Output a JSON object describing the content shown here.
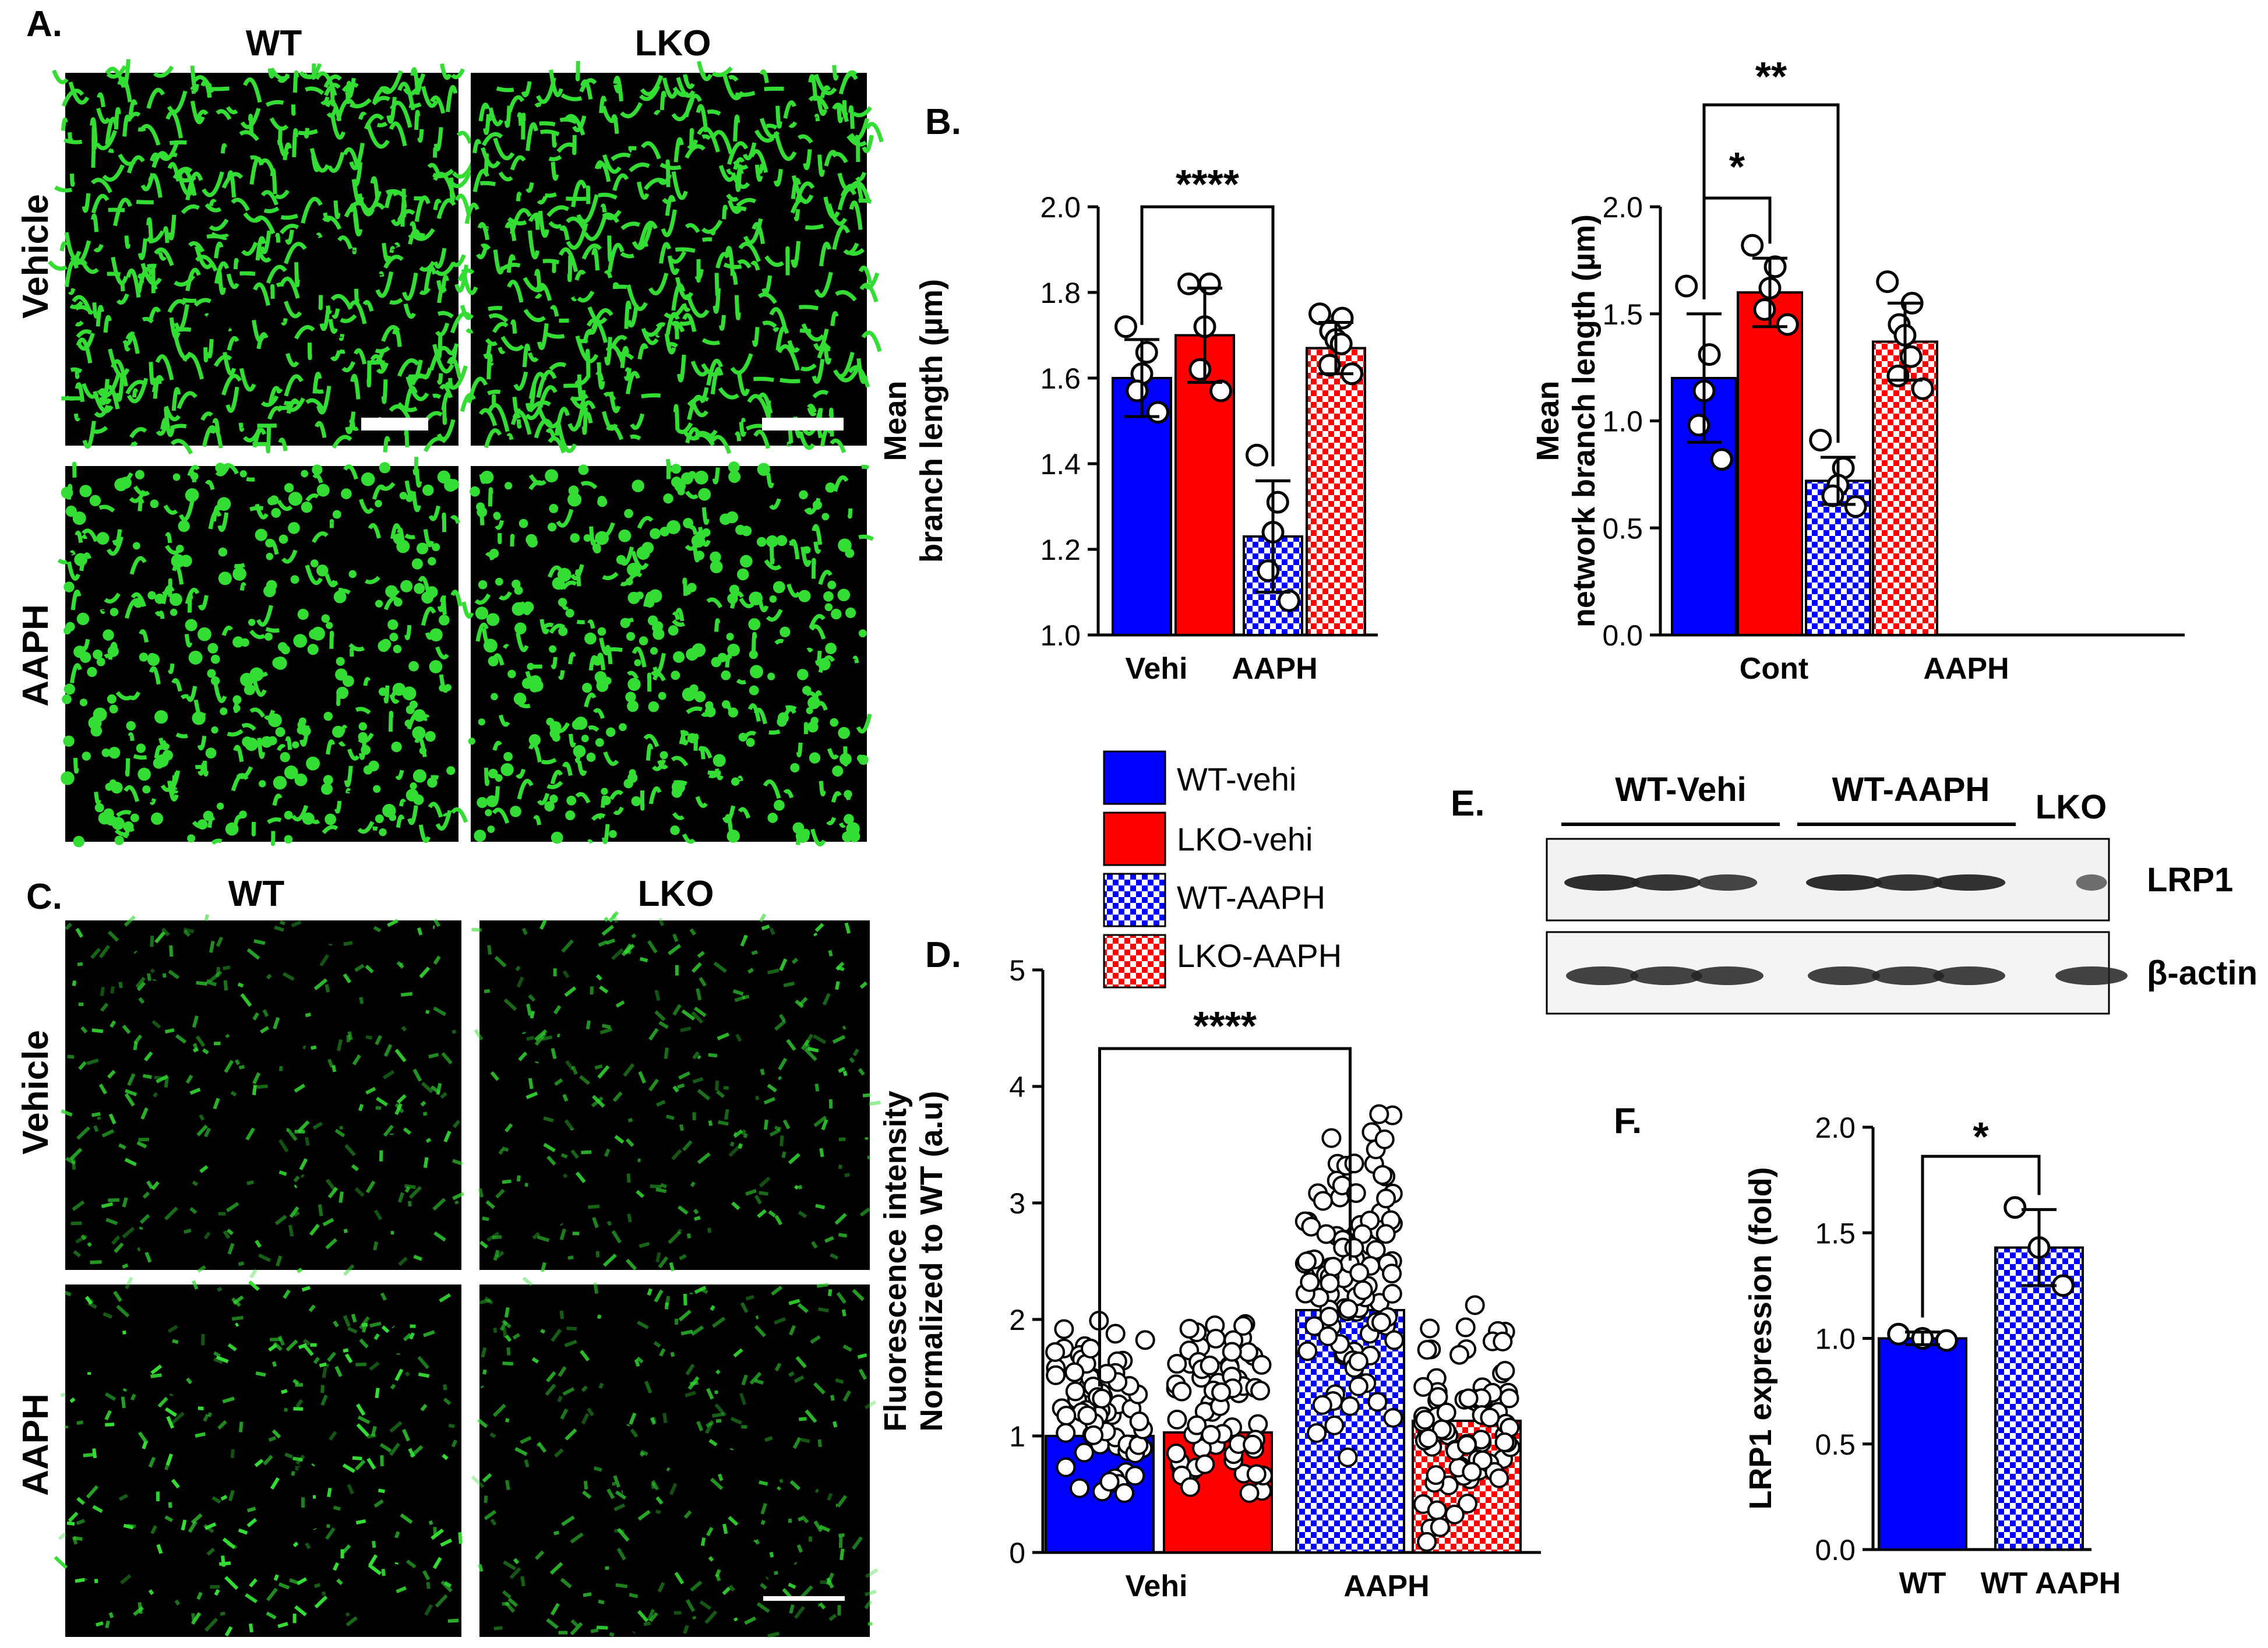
{
  "colors": {
    "wt": "#0000ff",
    "lko": "#ff0000",
    "micro_green": "#33dd33",
    "background": "#ffffff"
  },
  "panel_a": {
    "label": "A.",
    "col_labels": [
      "WT",
      "LKO"
    ],
    "row_labels": [
      "Vehicle",
      "AAPH"
    ]
  },
  "panel_c": {
    "label": "C.",
    "col_labels": [
      "WT",
      "LKO"
    ],
    "row_labels": [
      "Vehicle",
      "AAPH"
    ]
  },
  "legend": {
    "entries": [
      {
        "label": "WT-vehi",
        "color": "#0000ff",
        "pattern": "solid"
      },
      {
        "label": "LKO-vehi",
        "color": "#ff0000",
        "pattern": "solid"
      },
      {
        "label": "WT-AAPH",
        "color": "#0000ff",
        "pattern": "checker"
      },
      {
        "label": "LKO-AAPH",
        "color": "#ff0000",
        "pattern": "checker"
      }
    ]
  },
  "panel_e": {
    "label": "E.",
    "group_labels": [
      "WT-Vehi",
      "WT-AAPH",
      "LKO"
    ],
    "band_labels": [
      "LRP1",
      "β-actin"
    ]
  },
  "chart_data": [
    {
      "id": "B-left",
      "panel_label": "B.",
      "type": "bar",
      "ylabel": [
        "Mean",
        "branch length (µm)"
      ],
      "ylim": [
        1.0,
        2.0
      ],
      "yticks": [
        1.0,
        1.2,
        1.4,
        1.6,
        1.8,
        2.0
      ],
      "ytick_labels": [
        "1.0",
        "1.2",
        "1.4",
        "1.6",
        "1.8",
        "2.0"
      ],
      "categories": [
        "Vehi",
        "AAPH"
      ],
      "bars": [
        {
          "name": "WT-vehi",
          "mean": 1.6,
          "err": 0.09,
          "points": [
            1.72,
            1.66,
            1.61,
            1.57,
            1.52
          ]
        },
        {
          "name": "LKO-vehi",
          "mean": 1.7,
          "err": 0.11,
          "points": [
            1.82,
            1.82,
            1.72,
            1.62,
            1.57
          ]
        },
        {
          "name": "WT-AAPH",
          "mean": 1.23,
          "err": 0.13,
          "points": [
            1.42,
            1.31,
            1.24,
            1.15,
            1.08
          ]
        },
        {
          "name": "LKO-AAPH",
          "mean": 1.67,
          "err": 0.06,
          "points": [
            1.75,
            1.74,
            1.71,
            1.69,
            1.68,
            1.63,
            1.61
          ]
        }
      ],
      "significance": [
        {
          "from": 0,
          "to": 2,
          "label": "****"
        }
      ]
    },
    {
      "id": "B-right",
      "type": "bar",
      "ylabel": [
        "Mean",
        "network branch length (µm)"
      ],
      "ylim": [
        0.0,
        2.0
      ],
      "yticks": [
        0.0,
        0.5,
        1.0,
        1.5,
        2.0
      ],
      "ytick_labels": [
        "0.0",
        "0.5",
        "1.0",
        "1.5",
        "2.0"
      ],
      "categories": [
        "Cont",
        "AAPH"
      ],
      "bars": [
        {
          "name": "WT-vehi",
          "mean": 1.2,
          "err": 0.3,
          "points": [
            1.63,
            1.31,
            1.14,
            0.98,
            0.82
          ]
        },
        {
          "name": "LKO-vehi",
          "mean": 1.6,
          "err": 0.16,
          "points": [
            1.82,
            1.72,
            1.62,
            1.52,
            1.45
          ]
        },
        {
          "name": "WT-AAPH",
          "mean": 0.72,
          "err": 0.11,
          "points": [
            0.91,
            0.78,
            0.7,
            0.65,
            0.6
          ]
        },
        {
          "name": "LKO-AAPH",
          "mean": 1.37,
          "err": 0.18,
          "points": [
            1.65,
            1.55,
            1.45,
            1.4,
            1.3,
            1.21,
            1.15
          ]
        }
      ],
      "significance": [
        {
          "from": 0,
          "to": 1,
          "label": "*"
        },
        {
          "from": 0,
          "to": 2,
          "label": "**"
        }
      ]
    },
    {
      "id": "D",
      "panel_label": "D.",
      "type": "bar",
      "ylabel": [
        "Fluorescence intensity",
        "Normalized to WT (a.u)"
      ],
      "ylim": [
        0,
        5
      ],
      "yticks": [
        0,
        1,
        2,
        3,
        4,
        5
      ],
      "ytick_labels": [
        "0",
        "1",
        "2",
        "3",
        "4",
        "5"
      ],
      "categories": [
        "Vehi",
        "AAPH"
      ],
      "bars": [
        {
          "name": "WT-vehi",
          "mean": 1.0,
          "n": 70,
          "min": 0.3,
          "max": 2.2
        },
        {
          "name": "LKO-vehi",
          "mean": 1.03,
          "n": 70,
          "min": 0.45,
          "max": 2.15
        },
        {
          "name": "WT-AAPH",
          "mean": 2.08,
          "n": 110,
          "min": 0.8,
          "max": 3.95
        },
        {
          "name": "LKO-AAPH",
          "mean": 1.13,
          "n": 80,
          "min": 0.08,
          "max": 2.2
        }
      ],
      "significance": [
        {
          "from": 0,
          "to": 2,
          "label": "****"
        }
      ]
    },
    {
      "id": "F",
      "panel_label": "F.",
      "type": "bar",
      "ylabel": [
        "LRP1 expression (fold)"
      ],
      "ylim": [
        0.0,
        2.0
      ],
      "yticks": [
        0.0,
        0.5,
        1.0,
        1.5,
        2.0
      ],
      "ytick_labels": [
        "0.0",
        "0.5",
        "1.0",
        "1.5",
        "2.0"
      ],
      "categories": [
        "WT",
        "WT AAPH"
      ],
      "bars": [
        {
          "name": "WT-vehi",
          "mean": 1.0,
          "err": 0.03,
          "points": [
            1.02,
            1.0,
            0.99
          ]
        },
        {
          "name": "WT-AAPH",
          "mean": 1.43,
          "err": 0.18,
          "points": [
            1.62,
            1.43,
            1.25
          ]
        }
      ],
      "significance": [
        {
          "from": 0,
          "to": 1,
          "label": "*"
        }
      ]
    }
  ]
}
